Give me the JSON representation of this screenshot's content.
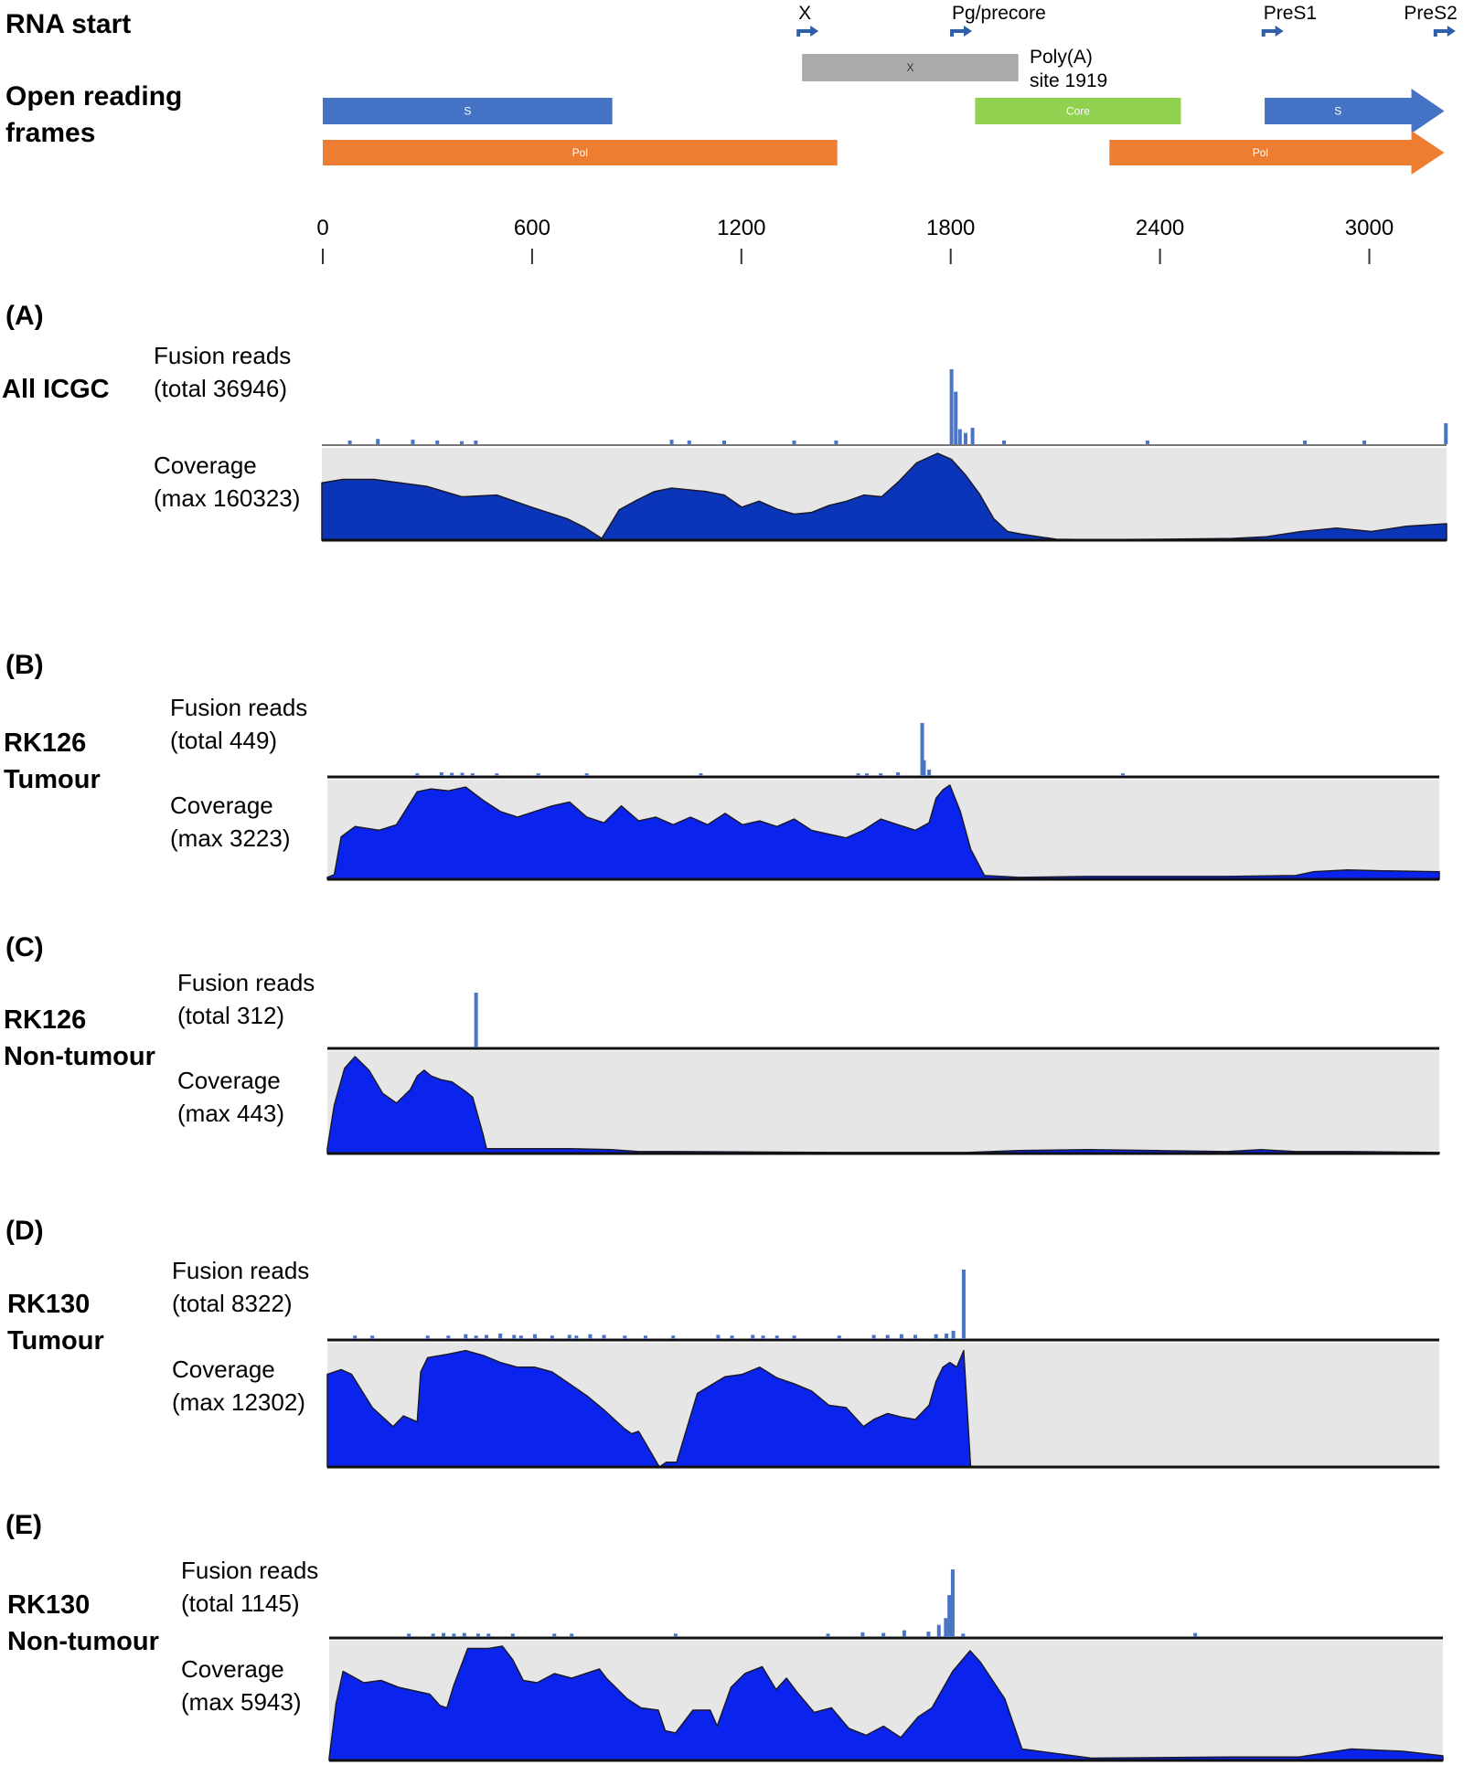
{
  "header": {
    "rna_start_label": "RNA start",
    "orf_label_line1": "Open reading",
    "orf_label_line2": "frames"
  },
  "colors": {
    "s": "#4472c4",
    "pol": "#ed7d31",
    "x": "#aaaaaa",
    "core": "#92d050",
    "tss_arrow": "#2e5fa8",
    "fusion": "#4a74c4",
    "coverage_a": "#0a35b8",
    "coverage_b": "#0a24ee",
    "panel_bg": "#e6e6e6"
  },
  "genome": {
    "axis_ticks": [
      0,
      600,
      1200,
      1800,
      2400,
      3000
    ],
    "tss_markers": [
      {
        "name": "X",
        "pos": 1374
      },
      {
        "name": "Pg/precore",
        "pos": 1814
      },
      {
        "name": "PreS1",
        "pos": 2707
      },
      {
        "name": "PreS2",
        "pos": 3200
      }
    ],
    "polya_label_line1": "Poly(A)",
    "polya_label_line2": "site 1919",
    "orfs": [
      {
        "id": "s1",
        "label": "S",
        "start": 0,
        "end": 830,
        "row": 1,
        "color": "s",
        "arrow": false
      },
      {
        "id": "s2",
        "label": "S",
        "start": 2700,
        "end": 3215,
        "row": 1,
        "color": "s",
        "arrow": true
      },
      {
        "id": "pol1",
        "label": "Pol",
        "start": 0,
        "end": 1475,
        "row": 2,
        "color": "pol",
        "arrow": false
      },
      {
        "id": "pol2",
        "label": "Pol",
        "start": 2255,
        "end": 3215,
        "row": 2,
        "color": "pol",
        "arrow": true
      },
      {
        "id": "x",
        "label": "X",
        "start": 1374,
        "end": 1994,
        "row": 0,
        "color": "x",
        "arrow": false
      },
      {
        "id": "core",
        "label": "Core",
        "start": 1870,
        "end": 2460,
        "row": 1,
        "color": "core",
        "arrow": false
      }
    ]
  },
  "panels": [
    {
      "letter": "(A)",
      "sample_line1": "All ICGC",
      "sample_line2": "",
      "fusion_line1": "Fusion reads",
      "fusion_line2": "(total 36946)",
      "coverage_line1": "Coverage",
      "coverage_line2": "(max 160323)"
    },
    {
      "letter": "(B)",
      "sample_line1": "RK126",
      "sample_line2": "Tumour",
      "fusion_line1": "Fusion reads",
      "fusion_line2": "(total 449)",
      "coverage_line1": "Coverage",
      "coverage_line2": "(max 3223)"
    },
    {
      "letter": "(C)",
      "sample_line1": "RK126",
      "sample_line2": "Non-tumour",
      "fusion_line1": "Fusion reads",
      "fusion_line2": "(total 312)",
      "coverage_line1": "Coverage",
      "coverage_line2": "(max 443)"
    },
    {
      "letter": "(D)",
      "sample_line1": "RK130",
      "sample_line2": "Tumour",
      "fusion_line1": "Fusion reads",
      "fusion_line2": "(total 8322)",
      "coverage_line1": "Coverage",
      "coverage_line2": "(max 12302)"
    },
    {
      "letter": "(E)",
      "sample_line1": "RK130",
      "sample_line2": "Non-tumour",
      "fusion_line1": "Fusion reads",
      "fusion_line2": "(total 1145)",
      "coverage_line1": "Coverage",
      "coverage_line2": "(max 5943)"
    }
  ],
  "chart_data": [
    {
      "type": "area",
      "title": "All ICGC",
      "x_range": [
        0,
        3215
      ],
      "coverage": {
        "max": 160323,
        "color": "coverage_a",
        "x": [
          0,
          60,
          150,
          300,
          400,
          500,
          600,
          700,
          750,
          800,
          820,
          850,
          900,
          950,
          1000,
          1100,
          1150,
          1200,
          1250,
          1300,
          1350,
          1400,
          1450,
          1500,
          1550,
          1600,
          1650,
          1700,
          1760,
          1800,
          1840,
          1880,
          1920,
          1960,
          2000,
          2050,
          2100,
          2200,
          2400,
          2600,
          2700,
          2800,
          2900,
          3000,
          3100,
          3215
        ],
        "y": [
          0.66,
          0.7,
          0.7,
          0.62,
          0.5,
          0.52,
          0.38,
          0.25,
          0.15,
          0.02,
          0.15,
          0.35,
          0.46,
          0.56,
          0.6,
          0.56,
          0.52,
          0.38,
          0.45,
          0.36,
          0.3,
          0.32,
          0.4,
          0.45,
          0.52,
          0.5,
          0.68,
          0.89,
          1.0,
          0.93,
          0.75,
          0.53,
          0.25,
          0.1,
          0.07,
          0.04,
          0.01,
          0.005,
          0.01,
          0.02,
          0.04,
          0.1,
          0.14,
          0.1,
          0.16,
          0.19
        ]
      },
      "fusion": {
        "color": "fusion",
        "positions": [
          80,
          160,
          260,
          330,
          400,
          440,
          1000,
          1050,
          1150,
          1350,
          1470,
          1800,
          1812,
          1824,
          1840,
          1860,
          1950,
          2360,
          2810,
          2980,
          3213
        ],
        "values": [
          0.05,
          0.07,
          0.06,
          0.05,
          0.04,
          0.05,
          0.06,
          0.05,
          0.05,
          0.05,
          0.05,
          1.0,
          0.7,
          0.2,
          0.15,
          0.22,
          0.05,
          0.05,
          0.05,
          0.05,
          0.28
        ]
      }
    },
    {
      "type": "area",
      "title": "RK126 Tumour",
      "x_range": [
        0,
        3215
      ],
      "coverage": {
        "max": 3223,
        "color": "coverage_b",
        "x": [
          0,
          20,
          40,
          80,
          150,
          200,
          260,
          300,
          350,
          400,
          450,
          500,
          550,
          600,
          650,
          700,
          750,
          800,
          850,
          900,
          950,
          1000,
          1050,
          1100,
          1150,
          1200,
          1250,
          1300,
          1350,
          1400,
          1450,
          1500,
          1550,
          1600,
          1650,
          1700,
          1740,
          1760,
          1780,
          1800,
          1830,
          1860,
          1900,
          2000,
          2200,
          2600,
          2800,
          2850,
          2950,
          3050,
          3215
        ],
        "y": [
          0.02,
          0.05,
          0.45,
          0.56,
          0.52,
          0.58,
          0.93,
          0.96,
          0.94,
          0.98,
          0.84,
          0.72,
          0.66,
          0.72,
          0.78,
          0.82,
          0.66,
          0.6,
          0.78,
          0.62,
          0.66,
          0.58,
          0.66,
          0.58,
          0.7,
          0.58,
          0.62,
          0.56,
          0.64,
          0.52,
          0.48,
          0.44,
          0.52,
          0.64,
          0.58,
          0.52,
          0.6,
          0.86,
          0.95,
          1.0,
          0.72,
          0.32,
          0.04,
          0.02,
          0.03,
          0.03,
          0.04,
          0.08,
          0.1,
          0.09,
          0.08
        ]
      },
      "fusion": {
        "color": "fusion",
        "positions": [
          260,
          330,
          360,
          390,
          420,
          490,
          610,
          750,
          1080,
          1535,
          1560,
          1600,
          1650,
          1720,
          1725,
          1740,
          2300
        ],
        "values": [
          0.05,
          0.07,
          0.06,
          0.06,
          0.05,
          0.05,
          0.05,
          0.05,
          0.05,
          0.05,
          0.05,
          0.05,
          0.07,
          1.0,
          0.3,
          0.12,
          0.05
        ]
      }
    },
    {
      "type": "area",
      "title": "RK126 Non-tumour",
      "x_range": [
        0,
        3215
      ],
      "coverage": {
        "max": 443,
        "color": "coverage_b",
        "x": [
          0,
          20,
          50,
          80,
          120,
          160,
          200,
          240,
          260,
          280,
          300,
          330,
          360,
          400,
          420,
          450,
          460,
          500,
          700,
          820,
          900,
          1000,
          1500,
          1850,
          2000,
          2200,
          2400,
          2600,
          2700,
          2800,
          2950,
          3215
        ],
        "y": [
          0.05,
          0.5,
          0.88,
          1.0,
          0.86,
          0.62,
          0.52,
          0.66,
          0.8,
          0.86,
          0.8,
          0.76,
          0.74,
          0.64,
          0.58,
          0.2,
          0.05,
          0.05,
          0.05,
          0.04,
          0.02,
          0.02,
          0.01,
          0.01,
          0.03,
          0.04,
          0.03,
          0.02,
          0.04,
          0.02,
          0.02,
          0.01
        ]
      },
      "fusion": {
        "color": "fusion",
        "positions": [
          430
        ],
        "values": [
          1.0
        ]
      }
    },
    {
      "type": "area",
      "title": "RK130 Tumour",
      "x_range": [
        0,
        3215
      ],
      "coverage": {
        "max": 12302,
        "color": "coverage_b",
        "x": [
          0,
          40,
          70,
          130,
          190,
          220,
          260,
          270,
          290,
          350,
          400,
          450,
          500,
          550,
          600,
          650,
          750,
          800,
          830,
          860,
          880,
          900,
          920,
          960,
          980,
          1010,
          1070,
          1150,
          1200,
          1250,
          1300,
          1350,
          1400,
          1450,
          1500,
          1550,
          1580,
          1620,
          1660,
          1700,
          1740,
          1760,
          1780,
          1800,
          1820,
          1840,
          1860,
          1880,
          1900,
          2000,
          2500,
          3215
        ],
        "y": [
          0.78,
          0.82,
          0.78,
          0.5,
          0.34,
          0.43,
          0.38,
          0.8,
          0.92,
          0.95,
          0.98,
          0.94,
          0.88,
          0.84,
          0.84,
          0.8,
          0.6,
          0.48,
          0.4,
          0.32,
          0.28,
          0.3,
          0.2,
          0.0,
          0.04,
          0.04,
          0.62,
          0.76,
          0.78,
          0.84,
          0.75,
          0.7,
          0.64,
          0.52,
          0.5,
          0.34,
          0.4,
          0.45,
          0.42,
          0.4,
          0.52,
          0.72,
          0.84,
          0.88,
          0.84,
          0.98,
          0.0,
          0.0,
          0.0,
          0.0,
          0.0,
          0.0
        ]
      },
      "fusion": {
        "color": "fusion",
        "positions": [
          80,
          130,
          290,
          350,
          400,
          430,
          460,
          500,
          540,
          560,
          600,
          650,
          700,
          720,
          760,
          800,
          860,
          920,
          1000,
          1130,
          1170,
          1230,
          1260,
          1300,
          1350,
          1480,
          1580,
          1620,
          1660,
          1700,
          1760,
          1790,
          1810,
          1840
        ],
        "values": [
          0.05,
          0.05,
          0.05,
          0.05,
          0.07,
          0.05,
          0.06,
          0.08,
          0.06,
          0.05,
          0.07,
          0.05,
          0.06,
          0.05,
          0.07,
          0.06,
          0.05,
          0.05,
          0.05,
          0.06,
          0.05,
          0.06,
          0.05,
          0.05,
          0.05,
          0.05,
          0.06,
          0.06,
          0.07,
          0.06,
          0.07,
          0.08,
          0.12,
          1.0
        ]
      }
    },
    {
      "type": "area",
      "title": "RK130 Non-tumour",
      "x_range": [
        0,
        3215
      ],
      "coverage": {
        "max": 5943,
        "color": "coverage_b",
        "x": [
          0,
          20,
          40,
          100,
          150,
          200,
          260,
          290,
          320,
          340,
          360,
          400,
          460,
          500,
          530,
          560,
          600,
          650,
          700,
          740,
          780,
          800,
          860,
          900,
          950,
          970,
          1000,
          1050,
          1100,
          1120,
          1160,
          1200,
          1250,
          1290,
          1320,
          1350,
          1400,
          1450,
          1500,
          1550,
          1600,
          1650,
          1700,
          1740,
          1800,
          1850,
          1880,
          1950,
          2000,
          2200,
          2600,
          2800,
          2950,
          3100,
          3215
        ],
        "y": [
          0.02,
          0.5,
          0.78,
          0.68,
          0.7,
          0.64,
          0.6,
          0.58,
          0.48,
          0.46,
          0.66,
          0.98,
          0.98,
          1.0,
          0.88,
          0.7,
          0.68,
          0.76,
          0.72,
          0.76,
          0.8,
          0.72,
          0.54,
          0.46,
          0.44,
          0.26,
          0.24,
          0.44,
          0.44,
          0.3,
          0.64,
          0.76,
          0.82,
          0.62,
          0.72,
          0.6,
          0.42,
          0.46,
          0.28,
          0.22,
          0.3,
          0.2,
          0.38,
          0.46,
          0.78,
          0.96,
          0.86,
          0.54,
          0.1,
          0.02,
          0.03,
          0.03,
          0.1,
          0.08,
          0.04
        ]
      },
      "fusion": {
        "color": "fusion",
        "positions": [
          230,
          300,
          330,
          360,
          390,
          430,
          460,
          530,
          650,
          700,
          1000,
          1440,
          1540,
          1600,
          1660,
          1730,
          1760,
          1780,
          1790,
          1800,
          1830,
          2500
        ],
        "values": [
          0.05,
          0.05,
          0.06,
          0.05,
          0.06,
          0.05,
          0.05,
          0.05,
          0.05,
          0.05,
          0.05,
          0.05,
          0.07,
          0.06,
          0.1,
          0.08,
          0.18,
          0.28,
          0.62,
          1.0,
          0.05,
          0.06
        ]
      }
    }
  ]
}
